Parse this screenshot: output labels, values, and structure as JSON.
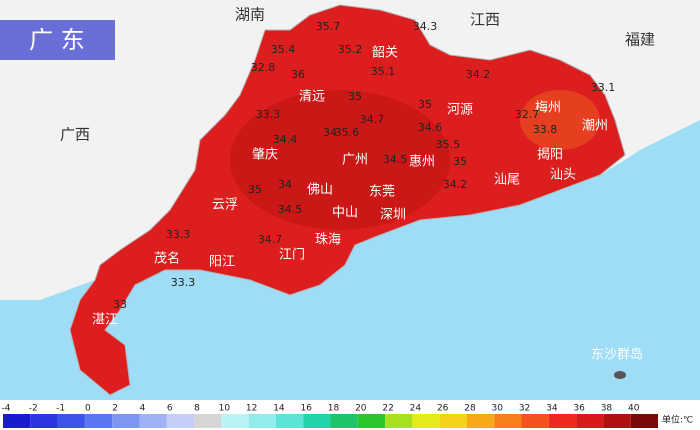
{
  "title": "广 东",
  "neighbors": [
    "湖南",
    "江西",
    "福建",
    "广西"
  ],
  "cities": [
    "韶关",
    "清远",
    "河源",
    "梅州",
    "潮州",
    "肇庆",
    "广州",
    "惠州",
    "揭阳",
    "汕头",
    "汕尾",
    "佛山",
    "东莞",
    "云浮",
    "中山",
    "深圳",
    "珠海",
    "江门",
    "阳江",
    "茂名",
    "湛江",
    "东沙群岛"
  ],
  "temperatures": [
    35.7,
    34.3,
    35.4,
    35.2,
    32.8,
    36,
    35.1,
    34.2,
    33.1,
    35,
    34.7,
    35,
    33.3,
    34.4,
    34,
    35.6,
    34.6,
    33.8,
    34.5,
    35.5,
    35,
    34,
    34.2,
    35,
    34.5,
    33.3,
    34.7,
    33.3,
    33,
    32.7
  ],
  "legend": {
    "ticks": [
      -4,
      -2,
      -1,
      0,
      2,
      4,
      6,
      8,
      10,
      12,
      14,
      16,
      18,
      20,
      22,
      24,
      26,
      28,
      30,
      32,
      34,
      36,
      38,
      40
    ],
    "colors": [
      "#1a1ad0",
      "#2b36e0",
      "#3c55e8",
      "#5a78ef",
      "#7d96f2",
      "#a0b2f5",
      "#c3cdf7",
      "#d6d6d6",
      "#b9f4f4",
      "#93ecec",
      "#5fe3d8",
      "#24d4a8",
      "#1ec46a",
      "#2cc52c",
      "#a6e01e",
      "#e3ec1a",
      "#f5d21a",
      "#f7a81a",
      "#f77f1a",
      "#f5521e",
      "#ee2a1e",
      "#d81a1a",
      "#b01010",
      "#7a0808"
    ],
    "unit": "单位:℃"
  }
}
